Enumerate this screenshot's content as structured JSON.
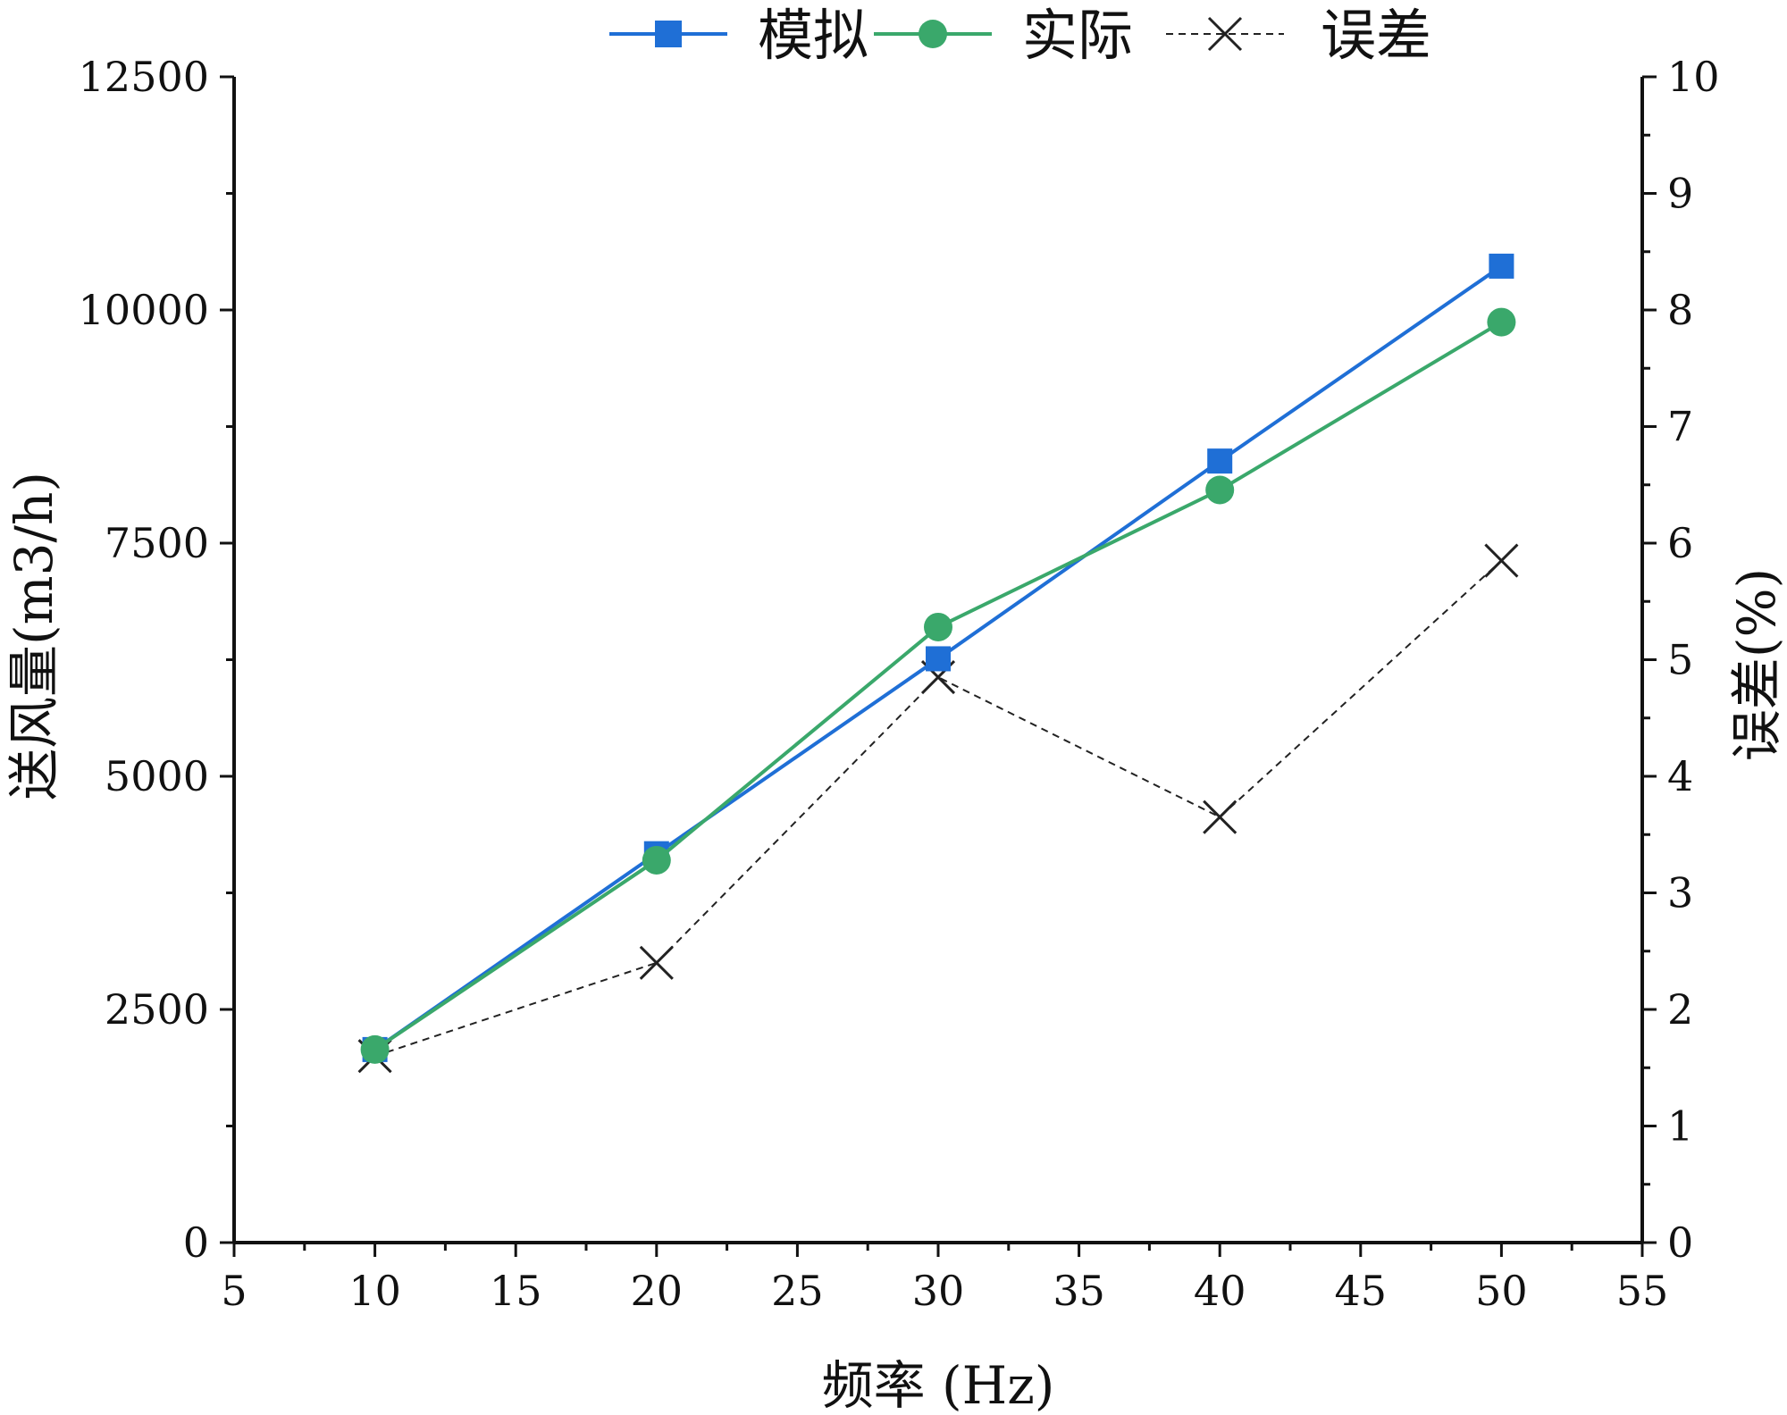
{
  "chart_data": {
    "type": "line",
    "title": "",
    "xlabel": "频率 (Hz)",
    "ylabel": "送风量(m3/h)",
    "y2label": "误差(%)",
    "xlim": [
      5,
      55
    ],
    "ylim": [
      0,
      12500
    ],
    "y2lim": [
      0,
      10
    ],
    "grid": false,
    "legend_position": "top",
    "x_ticks": [
      "5",
      "10",
      "15",
      "20",
      "25",
      "30",
      "35",
      "40",
      "45",
      "50",
      "55"
    ],
    "y_ticks": [
      "0",
      "2500",
      "5000",
      "7500",
      "10000",
      "12500"
    ],
    "y2_ticks": [
      "0",
      "1",
      "2",
      "3",
      "4",
      "5",
      "6",
      "7",
      "8",
      "9",
      "10"
    ],
    "x": [
      10,
      20,
      30,
      40,
      50
    ],
    "series": [
      {
        "name": "模拟",
        "axis": "left",
        "marker": "square",
        "line_style": "solid",
        "color": "#1f6fd6",
        "values": [
          2070,
          4170,
          6260,
          8380,
          10470
        ]
      },
      {
        "name": "实际",
        "axis": "left",
        "marker": "circle",
        "line_style": "solid",
        "color": "#3aa86b",
        "values": [
          2070,
          4100,
          6600,
          8070,
          9870
        ]
      },
      {
        "name": "误差",
        "axis": "right",
        "marker": "x",
        "line_style": "dashed",
        "color": "#222222",
        "values": [
          1.6,
          2.4,
          4.85,
          3.65,
          5.85
        ]
      }
    ]
  }
}
